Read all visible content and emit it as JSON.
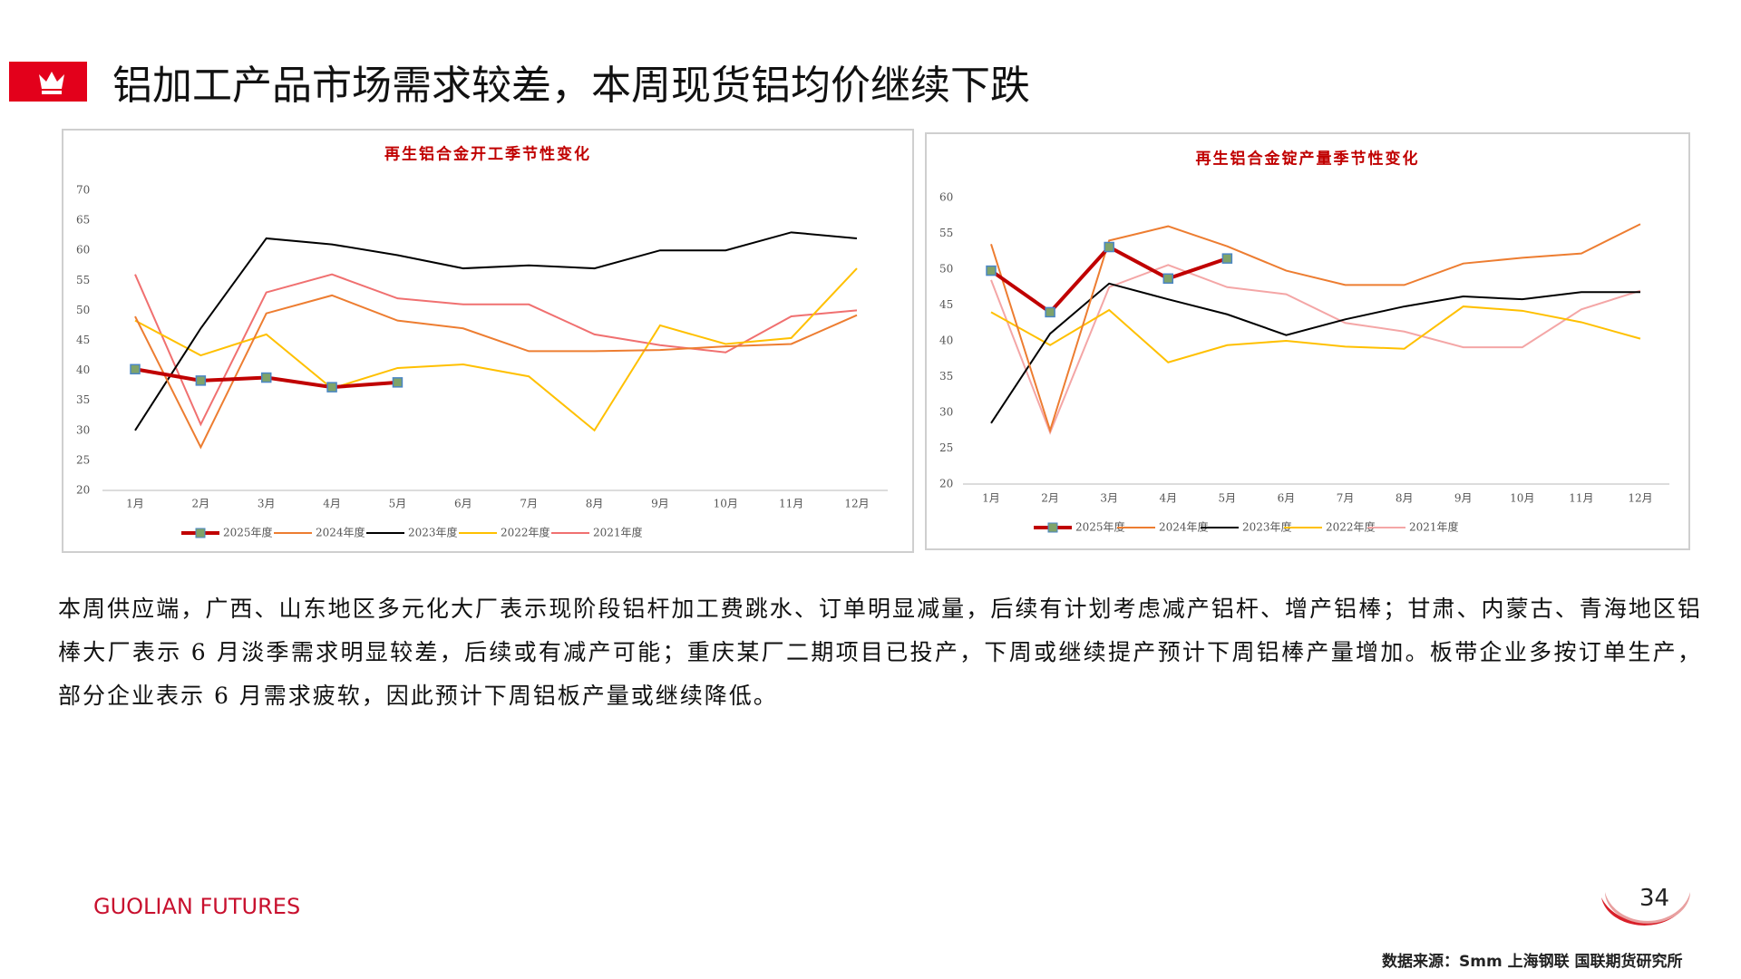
{
  "header": {
    "title": "铝加工产品市场需求较差，本周现货铝均价继续下跌"
  },
  "chart_data": [
    {
      "type": "line",
      "title": "再生铝合金开工季节性变化",
      "categories": [
        "1月",
        "2月",
        "3月",
        "4月",
        "5月",
        "6月",
        "7月",
        "8月",
        "9月",
        "10月",
        "11月",
        "12月"
      ],
      "ylim": [
        20,
        70
      ],
      "yticks": [
        20,
        25,
        30,
        35,
        40,
        45,
        50,
        55,
        60,
        65,
        70
      ],
      "legend": "bottom",
      "series": [
        {
          "name": "2025年度",
          "color": "#c00000",
          "values": [
            40.2,
            38.3,
            38.8,
            37.2,
            38.0,
            null,
            null,
            null,
            null,
            null,
            null,
            null
          ]
        },
        {
          "name": "2024年度",
          "color": "#ed7d31",
          "values": [
            49,
            27.2,
            49.5,
            52.5,
            48.3,
            47,
            43.2,
            43.2,
            43.4,
            44,
            44.4,
            49.2
          ]
        },
        {
          "name": "2023年度",
          "color": "#000000",
          "values": [
            30,
            47,
            62,
            61,
            59.2,
            57,
            57.5,
            57,
            60,
            60,
            63,
            62
          ]
        },
        {
          "name": "2022年度",
          "color": "#ffc000",
          "values": [
            48.3,
            42.5,
            46,
            37,
            40.4,
            41,
            39,
            30,
            47.5,
            44.4,
            45.4,
            57
          ]
        },
        {
          "name": "2021年度",
          "color": "#f07070",
          "values": [
            56,
            31,
            53,
            56,
            52,
            51,
            51,
            46,
            44.2,
            43,
            49,
            50
          ]
        }
      ]
    },
    {
      "type": "line",
      "title": "再生铝合金锭产量季节性变化",
      "categories": [
        "1月",
        "2月",
        "3月",
        "4月",
        "5月",
        "6月",
        "7月",
        "8月",
        "9月",
        "10月",
        "11月",
        "12月"
      ],
      "ylim": [
        20,
        60
      ],
      "yticks": [
        20,
        25,
        30,
        35,
        40,
        45,
        50,
        55,
        60
      ],
      "legend": "bottom",
      "series": [
        {
          "name": "2025年度",
          "color": "#c00000",
          "values": [
            49.8,
            44,
            53.1,
            48.7,
            51.5,
            null,
            null,
            null,
            null,
            null,
            null,
            null
          ]
        },
        {
          "name": "2024年度",
          "color": "#ed7d31",
          "values": [
            53.5,
            27.5,
            54,
            56,
            53.2,
            49.8,
            47.8,
            47.8,
            50.8,
            51.6,
            52.2,
            56.3
          ]
        },
        {
          "name": "2023年度",
          "color": "#000000",
          "values": [
            28.5,
            41,
            48,
            45.8,
            43.7,
            40.8,
            43,
            44.8,
            46.2,
            45.8,
            46.8,
            46.8
          ]
        },
        {
          "name": "2022年度",
          "color": "#ffc000",
          "values": [
            44,
            39.4,
            44.3,
            37,
            39.4,
            40,
            39.2,
            38.9,
            44.8,
            44.2,
            42.6,
            40.3
          ]
        },
        {
          "name": "2021年度",
          "color": "#f4a6a6",
          "values": [
            48.5,
            27.2,
            47.5,
            50.6,
            47.5,
            46.5,
            42.5,
            41.3,
            39.1,
            39.1,
            44.4,
            47
          ]
        }
      ]
    }
  ],
  "body": "本周供应端，广西、山东地区多元化大厂表示现阶段铝杆加工费跳水、订单明显减量，后续有计划考虑减产铝杆、增产铝棒；甘肃、内蒙古、青海地区铝棒大厂表示 6 月淡季需求明显较差，后续或有减产可能；重庆某厂二期项目已投产，下周或继续提产预计下周铝棒产量增加。板带企业多按订单生产，部分企业表示 6 月需求疲软，因此预计下周铝板产量或继续降低。",
  "footer": {
    "brand": "GUOLIAN FUTURES",
    "page": "34",
    "source": "数据来源：Smm 上海钢联 国联期货研究所"
  }
}
